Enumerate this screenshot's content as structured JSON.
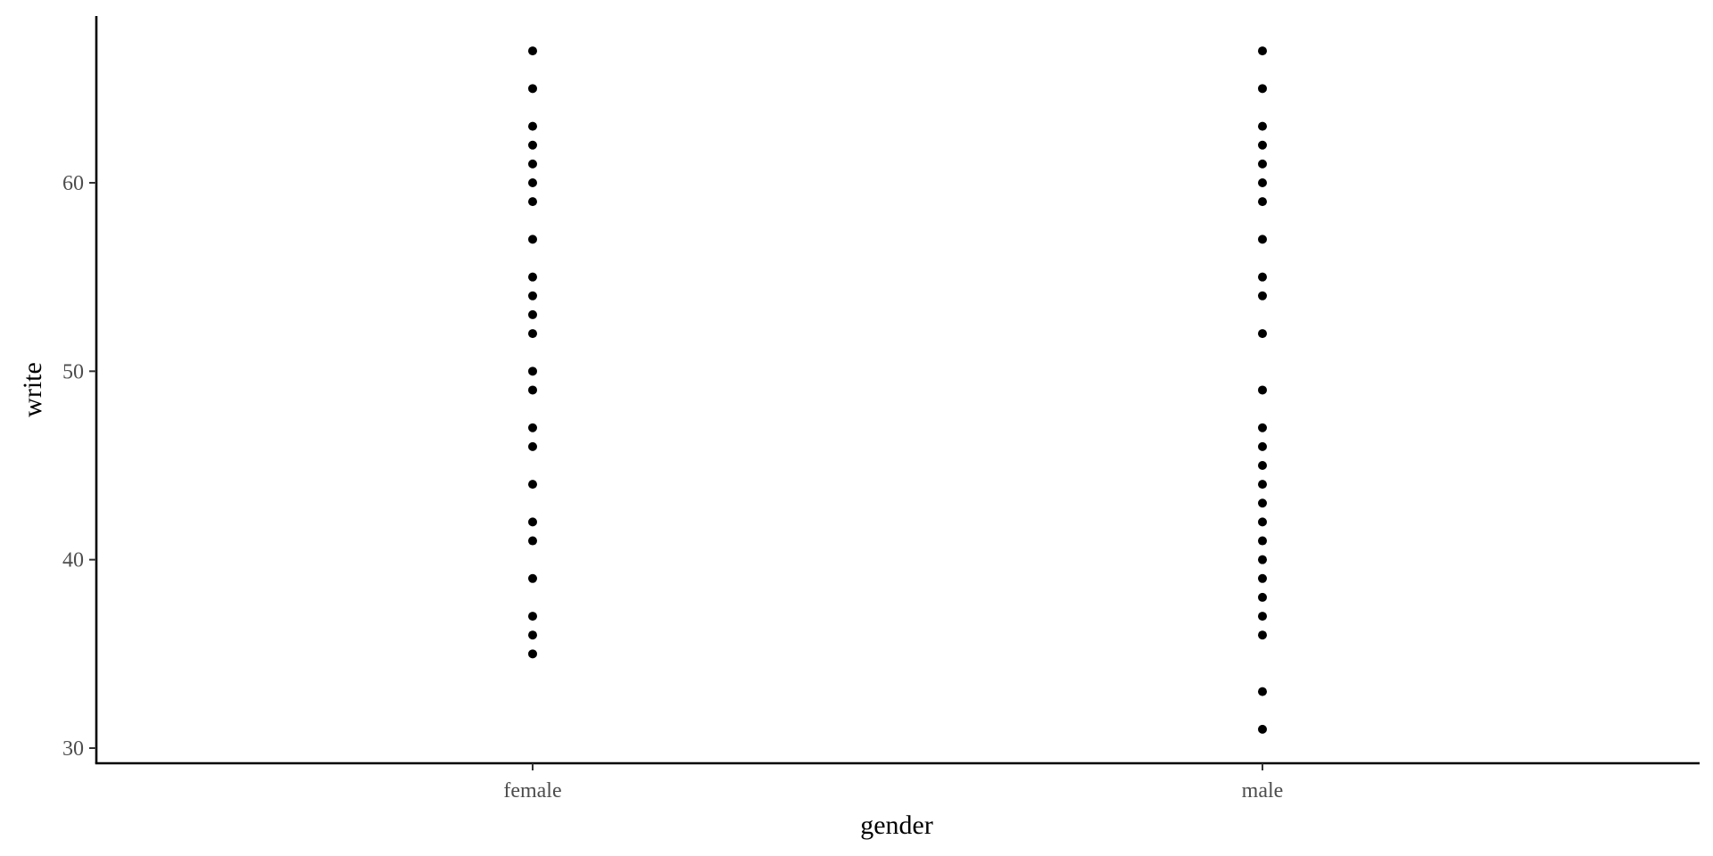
{
  "chart_data": {
    "type": "scatter",
    "title": "",
    "xlabel": "gender",
    "ylabel": "write",
    "categories": [
      "female",
      "male"
    ],
    "ylim": [
      29.2,
      68.8
    ],
    "yticks": [
      30,
      40,
      50,
      60
    ],
    "grid": false,
    "legend": "none",
    "point_color": "#000000",
    "series": [
      {
        "category": "female",
        "values": [
          35,
          36,
          37,
          39,
          41,
          42,
          44,
          46,
          47,
          49,
          50,
          52,
          53,
          54,
          55,
          57,
          59,
          60,
          61,
          62,
          63,
          65,
          67
        ]
      },
      {
        "category": "male",
        "values": [
          31,
          33,
          36,
          37,
          38,
          39,
          40,
          41,
          42,
          43,
          44,
          45,
          46,
          47,
          49,
          52,
          54,
          55,
          57,
          59,
          60,
          61,
          62,
          63,
          65,
          67
        ]
      }
    ]
  }
}
